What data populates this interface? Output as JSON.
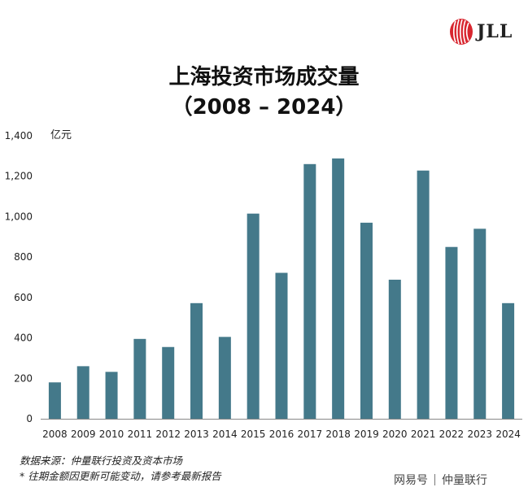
{
  "logo": {
    "text": "JLL",
    "color": "#d8262f"
  },
  "header": {
    "title_line1": "上海投资市场成交量",
    "title_line2": "（2008 – 2024）"
  },
  "footer": {
    "source": "数据来源：仲量联行投资及资本市场",
    "note": "* 往期金额因更新可能变动，请参考最新报告",
    "watermark_left": "网易号",
    "watermark_right": "仲量联行"
  },
  "chart_data": {
    "type": "bar",
    "ylabel": "亿元",
    "ylim": [
      0,
      1400
    ],
    "yticks": [
      0,
      200,
      400,
      600,
      800,
      1000,
      1200,
      1400
    ],
    "ytick_labels": [
      "0",
      "200",
      "400",
      "600",
      "800",
      "1,000",
      "1,200",
      "1,400"
    ],
    "categories": [
      "2008",
      "2009",
      "2010",
      "2011",
      "2012",
      "2013",
      "2014",
      "2015",
      "2016",
      "2017",
      "2018",
      "2019",
      "2020",
      "2021",
      "2022",
      "2023",
      "2024"
    ],
    "values": [
      180,
      260,
      232,
      395,
      355,
      572,
      405,
      1015,
      722,
      1260,
      1288,
      970,
      688,
      1228,
      850,
      940,
      572
    ],
    "bar_color": "#44798a",
    "grid": false
  }
}
